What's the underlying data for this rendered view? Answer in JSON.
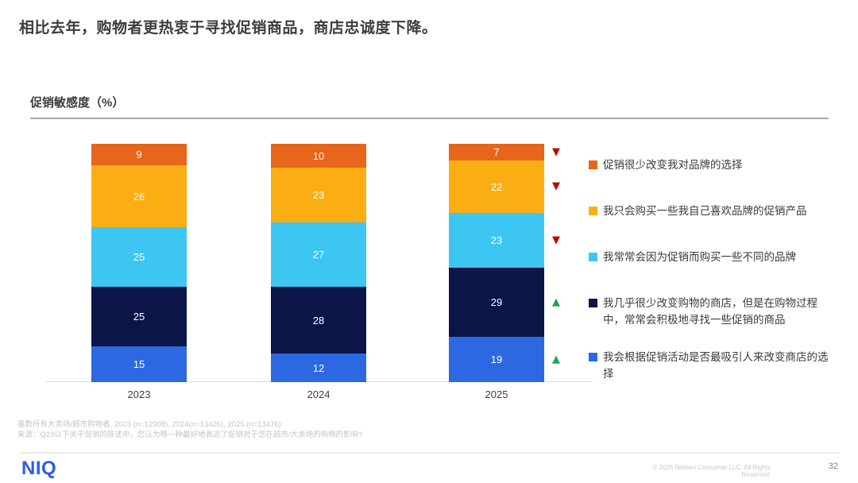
{
  "title": "相比去年，购物者更热衷于寻找促销商品，商店忠诚度下降。",
  "chart_header": "促销敏感度（%）",
  "chart_data": {
    "type": "bar",
    "variant": "stacked-column",
    "title": "促销敏感度（%）",
    "unit": "%",
    "ylim": [
      0,
      100
    ],
    "grid": false,
    "legend_position": "right",
    "categories": [
      "2023",
      "2024",
      "2025"
    ],
    "series": [
      {
        "name": "促销很少改变我对品牌的选择",
        "color": "#E7661B",
        "values": [
          9,
          10,
          7
        ],
        "trend_2025": "down"
      },
      {
        "name": "我只会购买一些我自己喜欢品牌的促销产品",
        "color": "#FBAE13",
        "values": [
          26,
          23,
          22
        ],
        "trend_2025": "down"
      },
      {
        "name": "我常常会因为促销而购买一些不同的品牌",
        "color": "#3EC6F2",
        "values": [
          25,
          27,
          23
        ],
        "trend_2025": "down"
      },
      {
        "name": "我几乎很少改变购物的商店，但是在购物过程中，常常会积极地寻找一些促销的商品",
        "color": "#0B1547",
        "values": [
          25,
          28,
          29
        ],
        "trend_2025": "up"
      },
      {
        "name": "我会根据促销活动是否最吸引人来改变商店的选择",
        "color": "#2D68E3",
        "values": [
          15,
          12,
          19
        ],
        "trend_2025": "up"
      }
    ],
    "trend_colors": {
      "down": "#C00000",
      "up": "#21A04E"
    },
    "trend_symbols": {
      "down": "▼",
      "up": "▲"
    }
  },
  "footnotes": [
    "基数所有大卖场/超市购物者, 2023 (n=12908), 2024(n=13426), 2025 (n=13476)",
    "来源：Q23以下关于促销的陈述中，您认为哪一种最好地表达了促销对于您在超市/大卖场的购物的影响?"
  ],
  "footer": {
    "logo": "NIQ",
    "copyright": "© 2025 Nielsen Consumer LLC. All Rights Reserved.",
    "page_number": "32"
  }
}
